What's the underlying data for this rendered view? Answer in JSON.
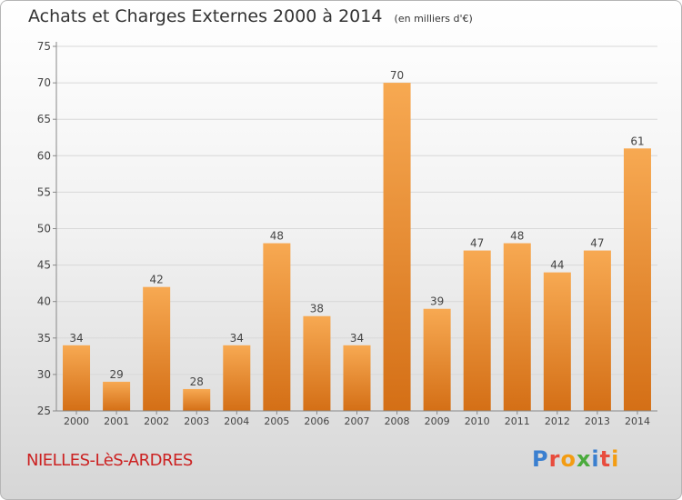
{
  "title": "Achats et Charges Externes 2000 à 2014",
  "unit": "(en milliers d'€)",
  "city": "NIELLES-LèS-ARDRES",
  "logo": {
    "text": "Proxiti",
    "colors": [
      "#3a7fd0",
      "#e84c3d",
      "#f39c12",
      "#4aab3c",
      "#3a7fd0",
      "#e84c3d",
      "#f39c12"
    ]
  },
  "colors": {
    "bar": "#f0973f",
    "bar_dark": "#d46f16",
    "city": "#cc2222"
  },
  "chart_data": {
    "type": "bar",
    "title": "Achats et Charges Externes 2000 à 2014",
    "subtitle": "(en milliers d'€)",
    "categories": [
      "2000",
      "2001",
      "2002",
      "2003",
      "2004",
      "2005",
      "2006",
      "2007",
      "2008",
      "2009",
      "2010",
      "2011",
      "2012",
      "2013",
      "2014"
    ],
    "values": [
      34,
      29,
      42,
      28,
      34,
      48,
      38,
      34,
      70,
      39,
      47,
      48,
      44,
      47,
      61
    ],
    "ylim": [
      25,
      75
    ],
    "yticks": [
      25,
      30,
      35,
      40,
      45,
      50,
      55,
      60,
      65,
      70,
      75
    ],
    "grid": true,
    "legend": "none"
  }
}
